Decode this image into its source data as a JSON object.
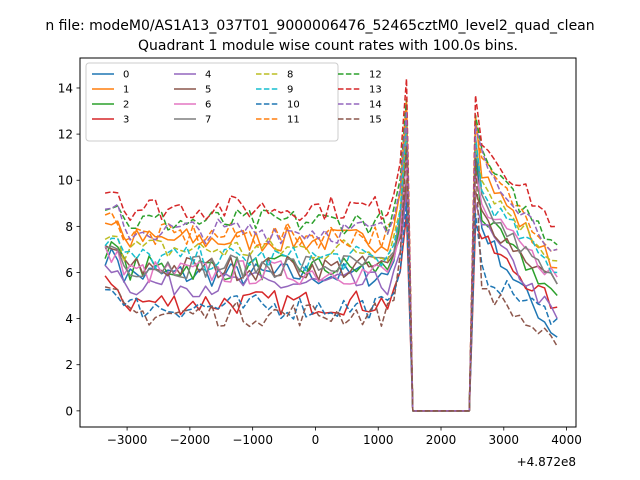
{
  "figure": {
    "suptitle": "n file: modeM0/AS1A13_037T01_9000006476_52465cztM0_level2_quad_clean",
    "offset_label": "+4.872e8"
  },
  "chart_data": {
    "type": "line",
    "title": "Quadrant 1 module wise count rates with 100.0s bins.",
    "xlabel": "",
    "ylabel": "",
    "xlim": [
      -3750,
      4150
    ],
    "ylim": [
      -0.7,
      15.3
    ],
    "x_offset": 487200000,
    "xticks": [
      -3000,
      -2000,
      -1000,
      0,
      1000,
      2000,
      3000,
      4000
    ],
    "xtick_labels": [
      "−3000",
      "−2000",
      "−1000",
      "0",
      "1000",
      "2000",
      "3000",
      "4000"
    ],
    "yticks": [
      0,
      2,
      4,
      6,
      8,
      10,
      12,
      14
    ],
    "ytick_labels": [
      "0",
      "2",
      "4",
      "6",
      "8",
      "10",
      "12",
      "14"
    ],
    "grid": false,
    "legend_position": "top-left",
    "legend_columns": 4,
    "series": [
      {
        "name": "0",
        "color": "#1f77b4",
        "style": "solid",
        "base": 5.9,
        "spike": 12.5,
        "post": 8.0,
        "end": 3.2
      },
      {
        "name": "1",
        "color": "#ff7f0e",
        "style": "solid",
        "base": 7.4,
        "spike": 13.5,
        "post": 10.5,
        "end": 6.2
      },
      {
        "name": "2",
        "color": "#2ca02c",
        "style": "solid",
        "base": 6.2,
        "spike": 11.5,
        "post": 8.5,
        "end": 5.0
      },
      {
        "name": "3",
        "color": "#d62728",
        "style": "solid",
        "base": 4.7,
        "spike": 8.5,
        "post": 7.5,
        "end": 4.5
      },
      {
        "name": "4",
        "color": "#9467bd",
        "style": "solid",
        "base": 5.5,
        "spike": 9.5,
        "post": 8.2,
        "end": 4.0
      },
      {
        "name": "5",
        "color": "#8c564b",
        "style": "solid",
        "base": 6.2,
        "spike": 10.0,
        "post": 8.5,
        "end": 5.5
      },
      {
        "name": "6",
        "color": "#e377c2",
        "style": "solid",
        "base": 6.0,
        "spike": 11.0,
        "post": 8.8,
        "end": 5.8
      },
      {
        "name": "7",
        "color": "#7f7f7f",
        "style": "solid",
        "base": 6.3,
        "spike": 12.5,
        "post": 9.0,
        "end": 5.5
      },
      {
        "name": "8",
        "color": "#bcbd22",
        "style": "dashed",
        "base": 7.0,
        "spike": 12.0,
        "post": 10.0,
        "end": 6.5
      },
      {
        "name": "9",
        "color": "#17becf",
        "style": "dashed",
        "base": 6.6,
        "spike": 12.5,
        "post": 9.5,
        "end": 6.0
      },
      {
        "name": "10",
        "color": "#1f77b4",
        "style": "dashed",
        "base": 4.5,
        "spike": 9.0,
        "post": 6.0,
        "end": 4.0
      },
      {
        "name": "11",
        "color": "#ff7f0e",
        "style": "dashed",
        "base": 7.6,
        "spike": 13.0,
        "post": 10.8,
        "end": 7.0
      },
      {
        "name": "12",
        "color": "#2ca02c",
        "style": "dashed",
        "base": 8.2,
        "spike": 13.5,
        "post": 11.0,
        "end": 7.2
      },
      {
        "name": "13",
        "color": "#d62728",
        "style": "dashed",
        "base": 8.8,
        "spike": 14.4,
        "post": 11.8,
        "end": 8.0
      },
      {
        "name": "14",
        "color": "#9467bd",
        "style": "dashed",
        "base": 7.8,
        "spike": 13.0,
        "post": 11.0,
        "end": 7.0
      },
      {
        "name": "15",
        "color": "#8c564b",
        "style": "dashed",
        "base": 4.2,
        "spike": 11.5,
        "post": 5.5,
        "end": 2.8
      }
    ],
    "x_start": -3350,
    "x_end": 3850,
    "step": 100,
    "gap_start": 1550,
    "gap_end": 2450
  }
}
